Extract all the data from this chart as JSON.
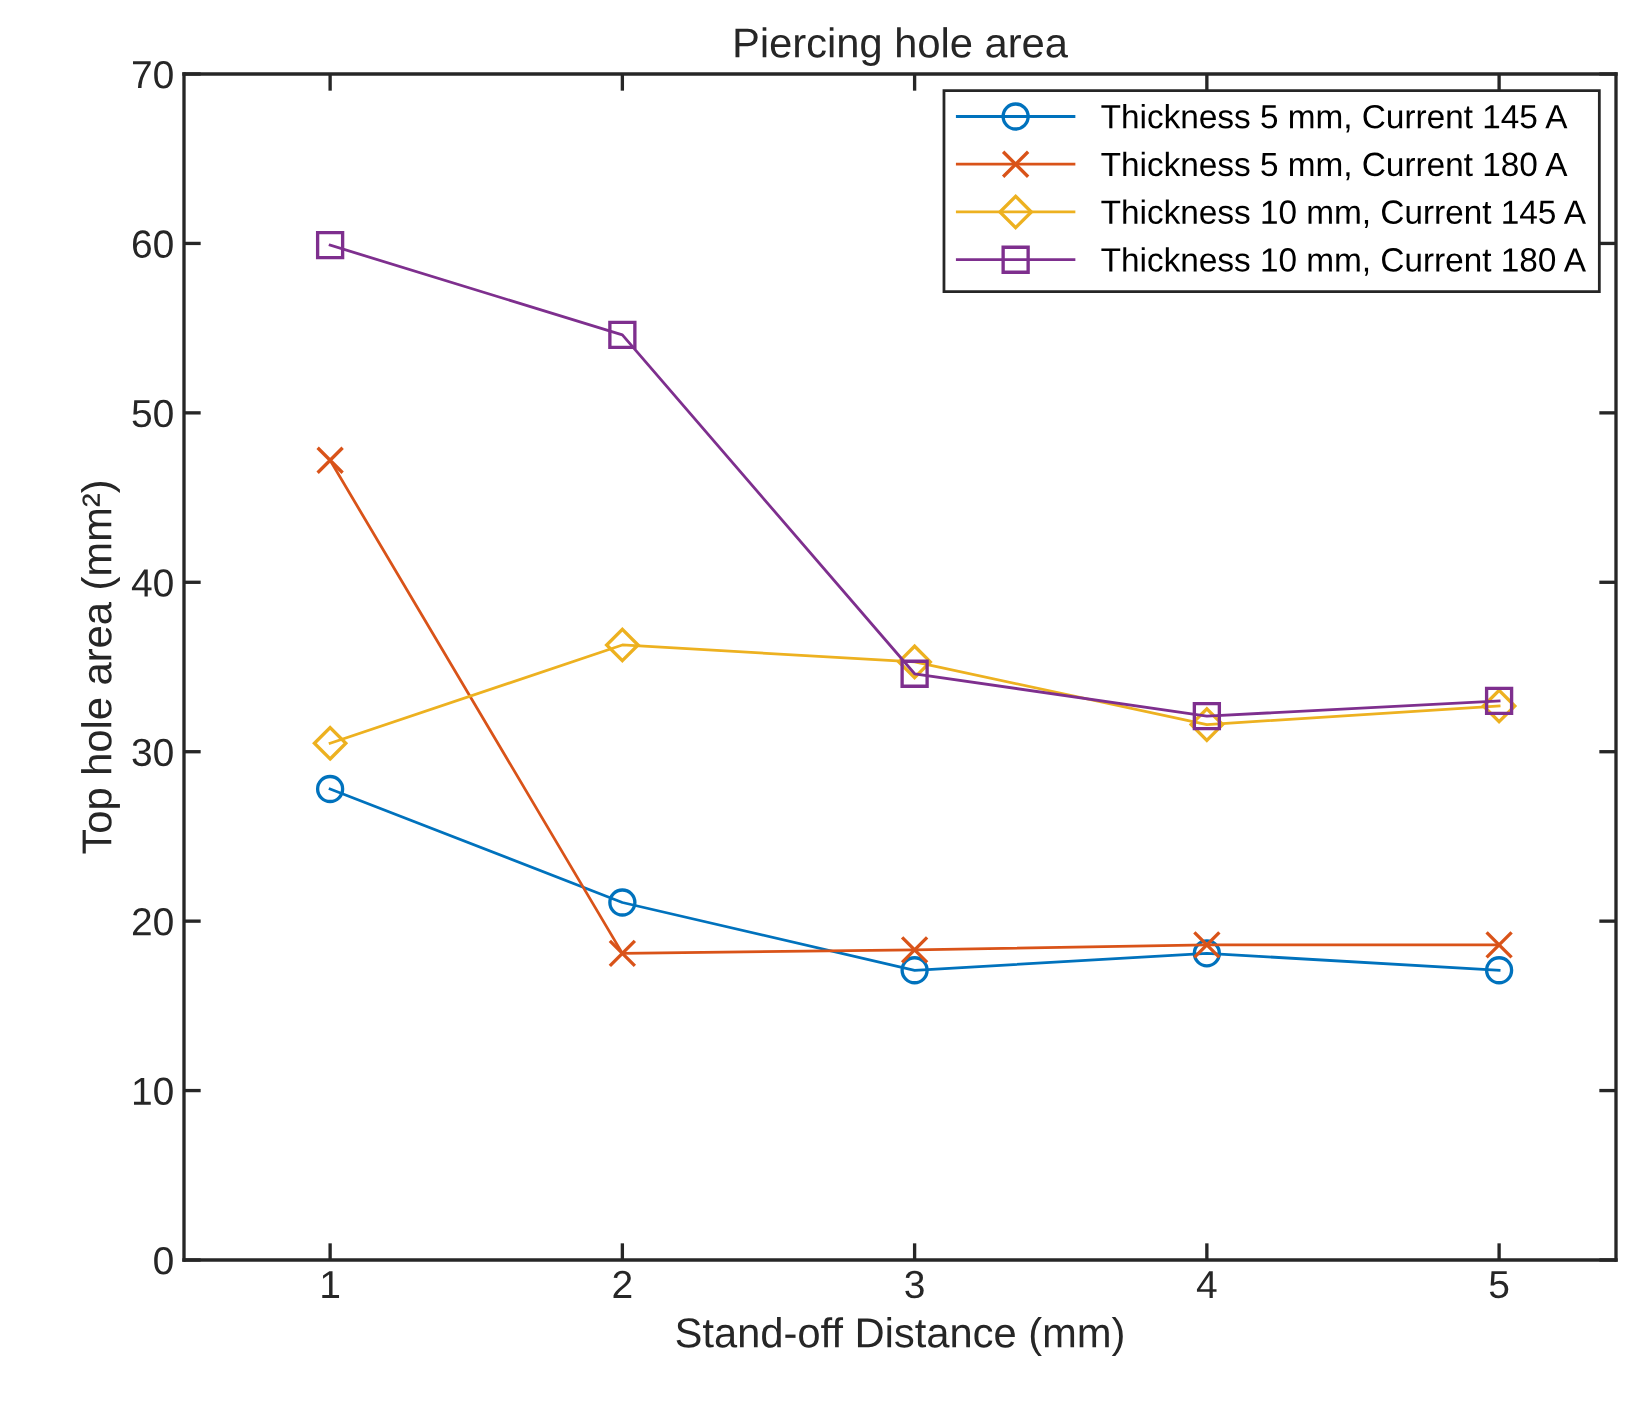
{
  "chart_data": {
    "type": "line",
    "title": "Piercing hole area",
    "xlabel": "Stand-off Distance (mm)",
    "ylabel": "Top hole area (mm²)",
    "x": [
      1,
      2,
      3,
      4,
      5
    ],
    "xlim": [
      0.5,
      5.4
    ],
    "xticks": [
      1,
      2,
      3,
      4,
      5
    ],
    "ylim": [
      0,
      70
    ],
    "yticks": [
      0,
      10,
      20,
      30,
      40,
      50,
      60,
      70
    ],
    "grid": false,
    "legend": "top right",
    "series": [
      {
        "name": "Thickness 5 mm, Current 145 A",
        "color": "#0072bd",
        "marker": "circle",
        "values": [
          27.8,
          21.1,
          17.1,
          18.1,
          17.1
        ]
      },
      {
        "name": "Thickness 5 mm, Current 180 A",
        "color": "#d95319",
        "marker": "cross",
        "values": [
          47.2,
          18.1,
          18.3,
          18.6,
          18.6
        ]
      },
      {
        "name": "Thickness 10 mm, Current 145 A",
        "color": "#edb120",
        "marker": "diamond",
        "values": [
          30.5,
          36.3,
          35.3,
          31.6,
          32.7
        ]
      },
      {
        "name": "Thickness 10 mm, Current 180 A",
        "color": "#7e2f8e",
        "marker": "square",
        "values": [
          59.9,
          54.6,
          34.6,
          32.1,
          33.0
        ]
      }
    ]
  }
}
